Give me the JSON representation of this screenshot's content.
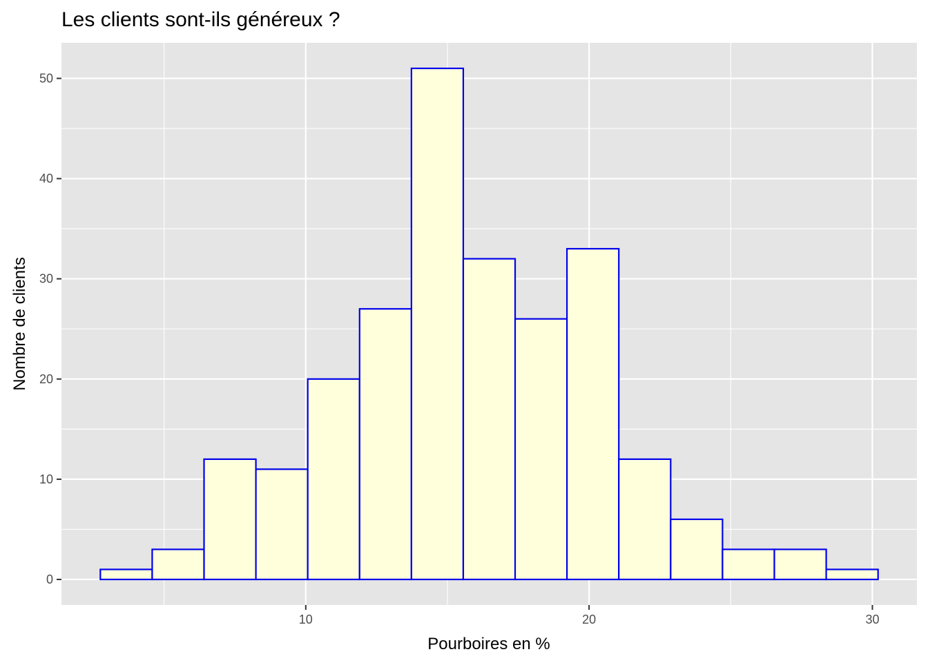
{
  "chart_data": {
    "type": "bar",
    "title": "Les clients sont-ils généreux ?",
    "xlabel": "Pourboires en %",
    "ylabel": "Nombre de clients",
    "bin_width": 1.83,
    "bins": [
      {
        "x0": 2.75,
        "x1": 4.58,
        "count": 1
      },
      {
        "x0": 4.58,
        "x1": 6.41,
        "count": 3
      },
      {
        "x0": 6.41,
        "x1": 8.24,
        "count": 12
      },
      {
        "x0": 8.24,
        "x1": 10.07,
        "count": 11
      },
      {
        "x0": 10.07,
        "x1": 11.9,
        "count": 20
      },
      {
        "x0": 11.9,
        "x1": 13.73,
        "count": 27
      },
      {
        "x0": 13.73,
        "x1": 15.56,
        "count": 51
      },
      {
        "x0": 15.56,
        "x1": 17.39,
        "count": 32
      },
      {
        "x0": 17.39,
        "x1": 19.22,
        "count": 26
      },
      {
        "x0": 19.22,
        "x1": 21.05,
        "count": 33
      },
      {
        "x0": 21.05,
        "x1": 22.88,
        "count": 12
      },
      {
        "x0": 22.88,
        "x1": 24.71,
        "count": 6
      },
      {
        "x0": 24.71,
        "x1": 26.54,
        "count": 3
      },
      {
        "x0": 26.54,
        "x1": 28.37,
        "count": 3
      },
      {
        "x0": 28.37,
        "x1": 30.2,
        "count": 1
      }
    ],
    "xlim": [
      1.377,
      31.573
    ],
    "ylim": [
      -2.55,
      53.55
    ],
    "x_ticks": [
      10,
      20,
      30
    ],
    "x_tick_labels": [
      "10",
      "20",
      "30"
    ],
    "y_ticks": [
      0,
      10,
      20,
      30,
      40,
      50
    ],
    "y_tick_labels": [
      "0",
      "10",
      "20",
      "30",
      "40",
      "50"
    ],
    "grid": true,
    "colors": {
      "panel_background": "#e5e5e5",
      "grid": "#ffffff",
      "bar_fill": "#ffffdc",
      "bar_outline": "#0000ee",
      "tick_label": "#4d4d4d",
      "tick_mark": "#333333"
    }
  }
}
